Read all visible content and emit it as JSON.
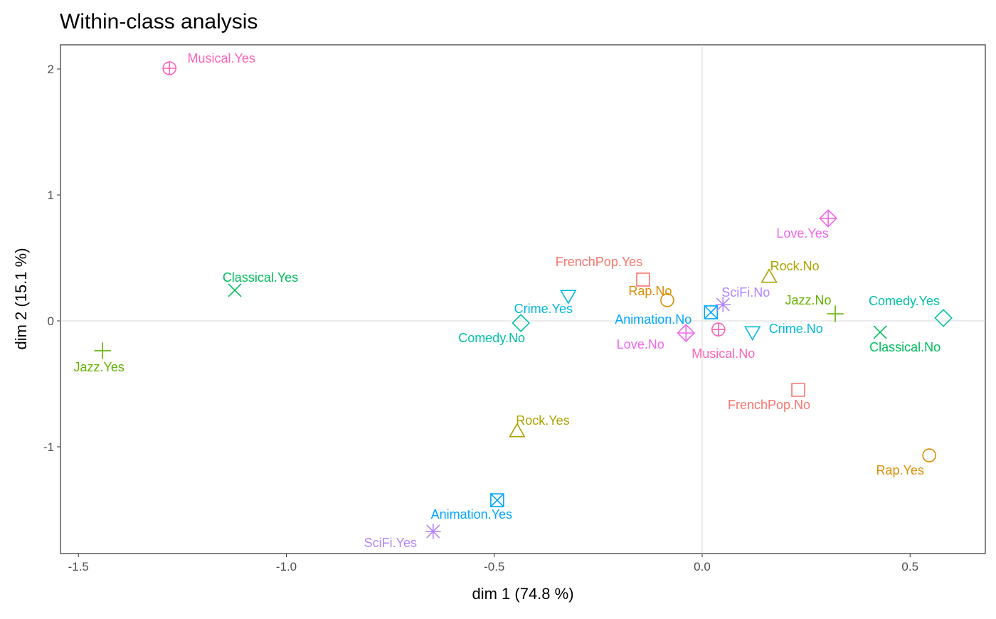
{
  "chart_data": {
    "type": "scatter",
    "title": "Within-class analysis",
    "xlabel": "dim 1 (74.8 %)",
    "ylabel": "dim 2 (15.1 %)",
    "xlim": [
      -1.63,
      0.68
    ],
    "ylim": [
      -1.84,
      2.2
    ],
    "x_ticks": [
      -1.5,
      -1.0,
      -0.5,
      0.0,
      0.5
    ],
    "x_tick_labels": [
      "-1.5",
      "-1.0",
      "-0.5",
      "0.0",
      "0.5"
    ],
    "y_ticks": [
      2,
      1,
      0,
      -1
    ],
    "y_tick_labels": [
      "2",
      "1",
      "0",
      "-1"
    ],
    "grid": false,
    "reference_lines": {
      "x": 0,
      "y": 0
    },
    "legend": "none",
    "groups": {
      "FrenchPop": {
        "color": "#F8766D",
        "shape": "square"
      },
      "Rap": {
        "color": "#DB8E00",
        "shape": "circle"
      },
      "Rock": {
        "color": "#AEA200",
        "shape": "triangle-up"
      },
      "Jazz": {
        "color": "#64B200",
        "shape": "plus"
      },
      "Classical": {
        "color": "#00BD5C",
        "shape": "cross"
      },
      "Comedy": {
        "color": "#00C1A7",
        "shape": "diamond"
      },
      "Crime": {
        "color": "#00BADE",
        "shape": "triangle-down"
      },
      "Animation": {
        "color": "#00A6FF",
        "shape": "square-cross"
      },
      "SciFi": {
        "color": "#B385FF",
        "shape": "asterisk"
      },
      "Love": {
        "color": "#EF67EB",
        "shape": "diamond-plus"
      },
      "Musical": {
        "color": "#FF63B6",
        "shape": "circle-plus"
      }
    },
    "points": [
      {
        "label": "Musical.Yes",
        "group": "Musical",
        "x": -1.281,
        "y": 2.006
      },
      {
        "label": "Classical.Yes",
        "group": "Classical",
        "x": -1.124,
        "y": 0.243
      },
      {
        "label": "Jazz.Yes",
        "group": "Jazz",
        "x": -1.442,
        "y": -0.237
      },
      {
        "label": "Comedy.No",
        "group": "Comedy",
        "x": -0.436,
        "y": -0.017
      },
      {
        "label": "Crime.Yes",
        "group": "Crime",
        "x": -0.322,
        "y": 0.198
      },
      {
        "label": "Rock.Yes",
        "group": "Rock",
        "x": -0.445,
        "y": -0.876
      },
      {
        "label": "Animation.Yes",
        "group": "Animation",
        "x": -0.493,
        "y": -1.424
      },
      {
        "label": "SciFi.Yes",
        "group": "SciFi",
        "x": -0.647,
        "y": -1.672
      },
      {
        "label": "FrenchPop.Yes",
        "group": "FrenchPop",
        "x": -0.142,
        "y": 0.328
      },
      {
        "label": "Rap.No",
        "group": "Rap",
        "x": -0.084,
        "y": 0.164
      },
      {
        "label": "Animation.No",
        "group": "Animation",
        "x": 0.021,
        "y": 0.068
      },
      {
        "label": "SciFi.No",
        "group": "SciFi",
        "x": 0.05,
        "y": 0.13
      },
      {
        "label": "Love.No",
        "group": "Love",
        "x": -0.039,
        "y": -0.096
      },
      {
        "label": "Musical.No",
        "group": "Musical",
        "x": 0.039,
        "y": -0.068
      },
      {
        "label": "Crime.No",
        "group": "Crime",
        "x": 0.121,
        "y": -0.09
      },
      {
        "label": "Rock.No",
        "group": "Rock",
        "x": 0.161,
        "y": 0.35
      },
      {
        "label": "Love.Yes",
        "group": "Love",
        "x": 0.303,
        "y": 0.814
      },
      {
        "label": "Jazz.No",
        "group": "Jazz",
        "x": 0.32,
        "y": 0.056
      },
      {
        "label": "Comedy.Yes",
        "group": "Comedy",
        "x": 0.58,
        "y": 0.023
      },
      {
        "label": "Classical.No",
        "group": "Classical",
        "x": 0.428,
        "y": -0.09
      },
      {
        "label": "FrenchPop.No",
        "group": "FrenchPop",
        "x": 0.231,
        "y": -0.548
      },
      {
        "label": "Rap.Yes",
        "group": "Rap",
        "x": 0.546,
        "y": -1.068
      }
    ]
  }
}
